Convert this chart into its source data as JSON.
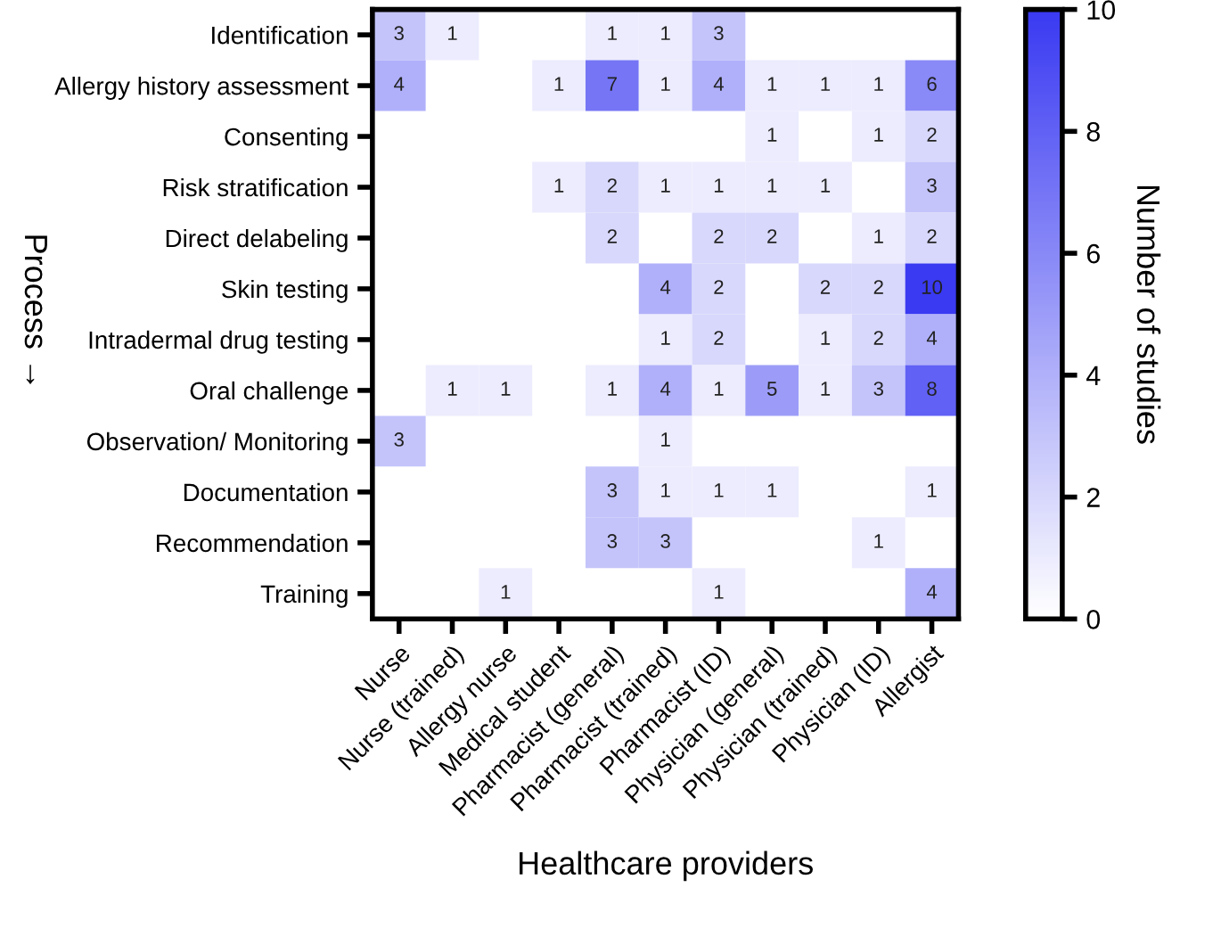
{
  "chart_data": {
    "type": "heatmap",
    "xlabel": "Healthcare providers",
    "ylabel": "Process →",
    "clabel": "Number of studies",
    "categories": [
      "Nurse",
      "Nurse (trained)",
      "Allergy nurse",
      "Medical student",
      "Pharmacist (general)",
      "Pharmacist (trained)",
      "Pharmacist (ID)",
      "Physician (general)",
      "Physician (trained)",
      "Physician (ID)",
      "Allergist"
    ],
    "y_categories": [
      "Identification",
      "Allergy history assessment",
      "Consenting",
      "Risk stratification",
      "Direct delabeling",
      "Skin testing",
      "Intradermal drug testing",
      "Oral challenge",
      "Observation/ Monitoring",
      "Documentation",
      "Recommendation",
      "Training"
    ],
    "cells": [
      [
        3,
        1,
        null,
        null,
        1,
        1,
        3,
        null,
        null,
        null,
        null
      ],
      [
        4,
        null,
        null,
        1,
        7,
        1,
        4,
        1,
        1,
        1,
        6
      ],
      [
        null,
        null,
        null,
        null,
        null,
        null,
        null,
        1,
        null,
        1,
        2
      ],
      [
        null,
        null,
        null,
        1,
        2,
        1,
        1,
        1,
        1,
        null,
        3
      ],
      [
        null,
        null,
        null,
        null,
        2,
        null,
        2,
        2,
        null,
        1,
        2
      ],
      [
        null,
        null,
        null,
        null,
        null,
        4,
        2,
        null,
        2,
        2,
        10
      ],
      [
        null,
        null,
        null,
        null,
        null,
        1,
        2,
        null,
        1,
        2,
        4
      ],
      [
        null,
        1,
        1,
        null,
        1,
        4,
        1,
        5,
        1,
        3,
        8
      ],
      [
        3,
        null,
        null,
        null,
        null,
        1,
        null,
        null,
        null,
        null,
        null
      ],
      [
        null,
        null,
        null,
        null,
        3,
        1,
        1,
        1,
        null,
        null,
        1
      ],
      [
        null,
        null,
        null,
        null,
        3,
        3,
        null,
        null,
        null,
        1,
        null
      ],
      [
        null,
        null,
        1,
        null,
        null,
        null,
        1,
        null,
        null,
        null,
        4
      ]
    ],
    "colors": [
      "#ffffff",
      "#3a3af2"
    ],
    "clim": [
      0,
      10
    ],
    "cticks": [
      0,
      2,
      4,
      6,
      8,
      10
    ],
    "data_labels": true
  }
}
